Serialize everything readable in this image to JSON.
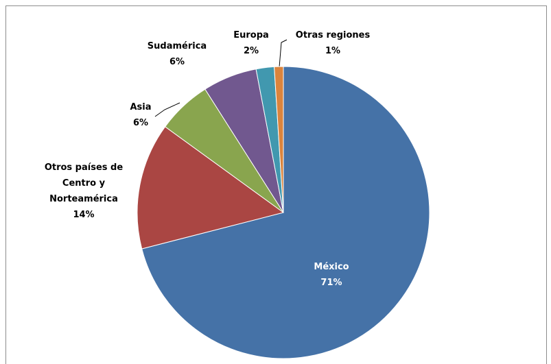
{
  "chart_data": {
    "type": "pie",
    "categories": [
      "México",
      "Otros países de Centro y Norteamérica",
      "Asia",
      "Sudamérica",
      "Europa",
      "Otras regiones"
    ],
    "values": [
      71,
      14,
      6,
      6,
      2,
      1
    ],
    "value_labels": [
      "71%",
      "14%",
      "6%",
      "6%",
      "2%",
      "1%"
    ],
    "colors": [
      "#4572a7",
      "#aa4643",
      "#89a54e",
      "#71588f",
      "#4198af",
      "#db843d"
    ]
  }
}
